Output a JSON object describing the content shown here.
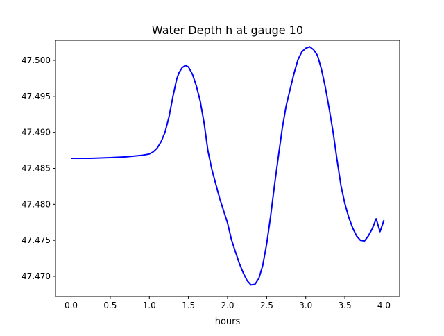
{
  "chart_data": {
    "type": "line",
    "title": "Water Depth h at gauge 10",
    "xlabel": "hours",
    "ylabel": "",
    "xlim": [
      -0.2,
      4.2
    ],
    "ylim": [
      47.4672,
      47.5028
    ],
    "xticks": [
      0.0,
      0.5,
      1.0,
      1.5,
      2.0,
      2.5,
      3.0,
      3.5,
      4.0
    ],
    "xtick_labels": [
      "0.0",
      "0.5",
      "1.0",
      "1.5",
      "2.0",
      "2.5",
      "3.0",
      "3.5",
      "4.0"
    ],
    "yticks": [
      47.47,
      47.475,
      47.48,
      47.485,
      47.49,
      47.495,
      47.5
    ],
    "ytick_labels": [
      "47.470",
      "47.475",
      "47.480",
      "47.485",
      "47.490",
      "47.495",
      "47.500"
    ],
    "grid": false,
    "series": [
      {
        "name": "",
        "color": "#0000ff",
        "x": [
          0.0,
          0.25,
          0.5,
          0.7,
          0.9,
          1.0,
          1.05,
          1.1,
          1.15,
          1.2,
          1.25,
          1.3,
          1.35,
          1.38,
          1.42,
          1.46,
          1.5,
          1.55,
          1.6,
          1.65,
          1.7,
          1.75,
          1.8,
          1.9,
          2.0,
          2.05,
          2.1,
          2.12,
          2.15,
          2.2,
          2.25,
          2.3,
          2.35,
          2.4,
          2.45,
          2.5,
          2.55,
          2.6,
          2.65,
          2.7,
          2.75,
          2.8,
          2.85,
          2.9,
          2.95,
          3.0,
          3.05,
          3.1,
          3.15,
          3.2,
          3.25,
          3.3,
          3.35,
          3.4,
          3.45,
          3.5,
          3.55,
          3.6,
          3.65,
          3.7,
          3.75,
          3.8,
          3.85,
          3.9,
          3.95,
          4.0
        ],
        "y": [
          47.4864,
          47.4864,
          47.4865,
          47.4866,
          47.4868,
          47.487,
          47.4873,
          47.4878,
          47.4887,
          47.49,
          47.4921,
          47.4949,
          47.4974,
          47.4983,
          47.499,
          47.4993,
          47.4991,
          47.4981,
          47.4965,
          47.4944,
          47.4913,
          47.4874,
          47.4848,
          47.4808,
          47.4774,
          47.4751,
          47.4734,
          47.4728,
          47.4718,
          47.4705,
          47.4694,
          47.4688,
          47.4689,
          47.4697,
          47.4715,
          47.4745,
          47.4783,
          47.4826,
          47.4867,
          47.4906,
          47.4937,
          47.496,
          47.4982,
          47.5001,
          47.5012,
          47.5017,
          47.5019,
          47.5015,
          47.5007,
          47.4988,
          47.4963,
          47.4933,
          47.49,
          47.4862,
          47.4826,
          47.4801,
          47.4782,
          47.4767,
          47.4756,
          47.475,
          47.4749,
          47.4756,
          47.4766,
          47.478,
          47.4762,
          47.4778
        ]
      }
    ]
  }
}
